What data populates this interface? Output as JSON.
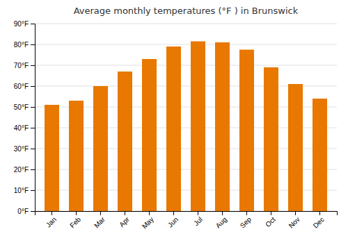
{
  "chart_data": {
    "type": "bar",
    "title": "Average monthly temperatures (°F ) in Brunswick",
    "categories": [
      "Jan",
      "Feb",
      "Mar",
      "Apr",
      "May",
      "Jun",
      "Jul",
      "Aug",
      "Sep",
      "Oct",
      "Nov",
      "Dec"
    ],
    "values": [
      51,
      53,
      60,
      67,
      73,
      79,
      81.5,
      81,
      77.5,
      69,
      61,
      54
    ],
    "color": "#E87800",
    "ylim": [
      0,
      90
    ],
    "yticks": [
      {
        "value": 0,
        "label": "0°F"
      },
      {
        "value": 10,
        "label": "10°F"
      },
      {
        "value": 20,
        "label": "20°F"
      },
      {
        "value": 30,
        "label": "30°F"
      },
      {
        "value": 40,
        "label": "40°F"
      },
      {
        "value": 50,
        "label": "50°F"
      },
      {
        "value": 60,
        "label": "60°F"
      },
      {
        "value": 70,
        "label": "70°F"
      },
      {
        "value": 80,
        "label": "80°F"
      },
      {
        "value": 90,
        "label": "90°F"
      }
    ],
    "grid": true
  }
}
